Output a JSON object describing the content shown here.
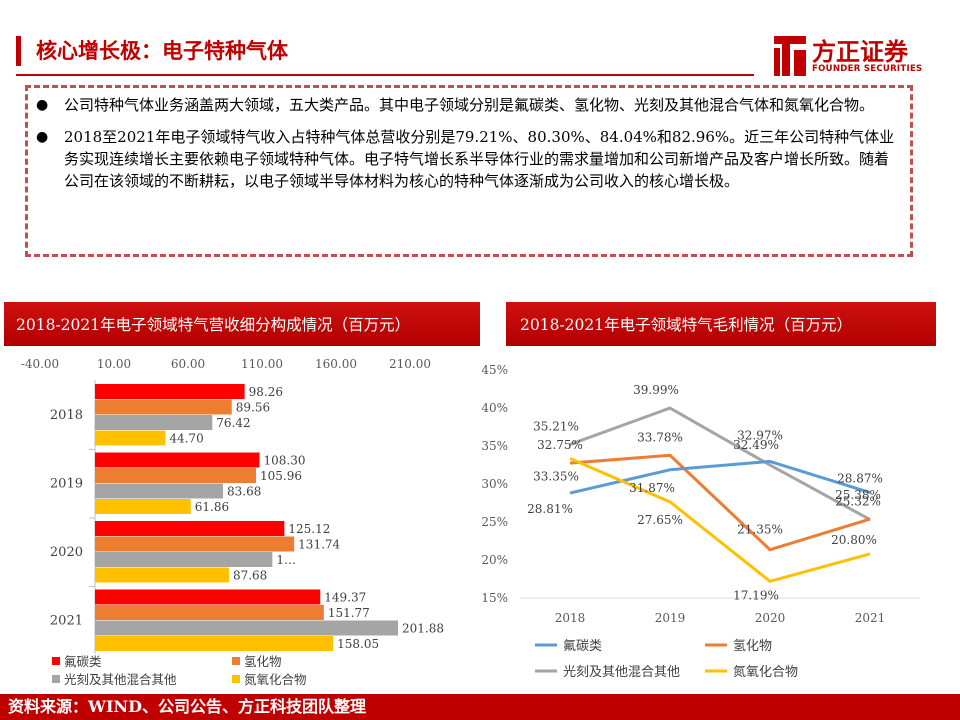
{
  "header": {
    "title": "核心增长极：电子特种气体",
    "logo_cn": "方正证券",
    "logo_en": "FOUNDER SECURITIES"
  },
  "notes": [
    "公司特种气体业务涵盖两大领域，五大类产品。其中电子领域分别是氟碳类、氢化物、光刻及其他混合气体和氮氧化合物。",
    "2018至2021年电子领域特气收入占特种气体总营收分别是79.21%、80.30%、84.04%和82.96%。近三年公司特种气体业务实现连续增长主要依赖电子领域特种气体。电子特气增长系半导体行业的需求量增加和公司新增产品及客户增长所致。随着公司在该领域的不断耕耘，以电子领域半导体材料为核心的特种气体逐渐成为公司收入的核心增长极。"
  ],
  "colors": {
    "red": "#ff0000",
    "orange": "#ed7d31",
    "gray": "#a5a5a5",
    "yellow": "#ffc000",
    "blue": "#5b9bd5",
    "brand": "#c00000"
  },
  "chart_data": [
    {
      "type": "bar",
      "orientation": "horizontal",
      "title": "2018-2021年电子领域特气营收细分构成情况（百万元）",
      "categories": [
        "2018",
        "2019",
        "2020",
        "2021"
      ],
      "x_ticks": [
        "-40.00",
        "10.00",
        "60.00",
        "110.00",
        "160.00",
        "210.00"
      ],
      "xlim": [
        -40,
        210
      ],
      "series": [
        {
          "name": "氟碳类",
          "values": [
            98.26,
            108.3,
            125.12,
            149.37
          ],
          "labels": [
            "98.26",
            "108.30",
            "125.12",
            "149.37"
          ]
        },
        {
          "name": "氢化物",
          "values": [
            89.56,
            105.96,
            131.74,
            151.77
          ],
          "labels": [
            "89.56",
            "105.96",
            "131.74",
            "151.77"
          ]
        },
        {
          "name": "光刻及其他混合其他",
          "values": [
            76.42,
            83.68,
            117.0,
            201.88
          ],
          "labels": [
            "76.42",
            "83.68",
            "1…",
            "201.88"
          ]
        },
        {
          "name": "氮氧化合物",
          "values": [
            44.7,
            61.86,
            87.68,
            158.05
          ],
          "labels": [
            "44.70",
            "61.86",
            "87.68",
            "158.05"
          ]
        }
      ],
      "legend": "bottom"
    },
    {
      "type": "line",
      "title": "2018-2021年电子领域特气毛利情况（百万元）",
      "categories": [
        "2018",
        "2019",
        "2020",
        "2021"
      ],
      "ylim": [
        15,
        45
      ],
      "y_ticks": [
        "45%",
        "40%",
        "35%",
        "30%",
        "25%",
        "20%",
        "15%"
      ],
      "series": [
        {
          "name": "氟碳类",
          "values": [
            28.81,
            31.87,
            32.97,
            28.87
          ],
          "labels": [
            "28.81%",
            "31.87%",
            "32.97%",
            "28.87%"
          ]
        },
        {
          "name": "氢化物",
          "values": [
            32.75,
            33.78,
            21.35,
            25.38
          ],
          "labels": [
            "32.75%",
            "33.78%",
            "21.35%",
            "25.38%"
          ]
        },
        {
          "name": "光刻及其他混合其他",
          "values": [
            35.21,
            39.99,
            32.49,
            25.32
          ],
          "labels": [
            "35.21%",
            "39.99%",
            "32.49%",
            "25.32%"
          ]
        },
        {
          "name": "氮氧化合物",
          "values": [
            33.35,
            27.65,
            17.19,
            20.8
          ],
          "labels": [
            "33.35%",
            "27.65%",
            "17.19%",
            "20.80%"
          ]
        }
      ],
      "legend": "bottom"
    }
  ],
  "footer": {
    "source": "资料来源：WIND、公司公告、方正科技团队整理"
  }
}
